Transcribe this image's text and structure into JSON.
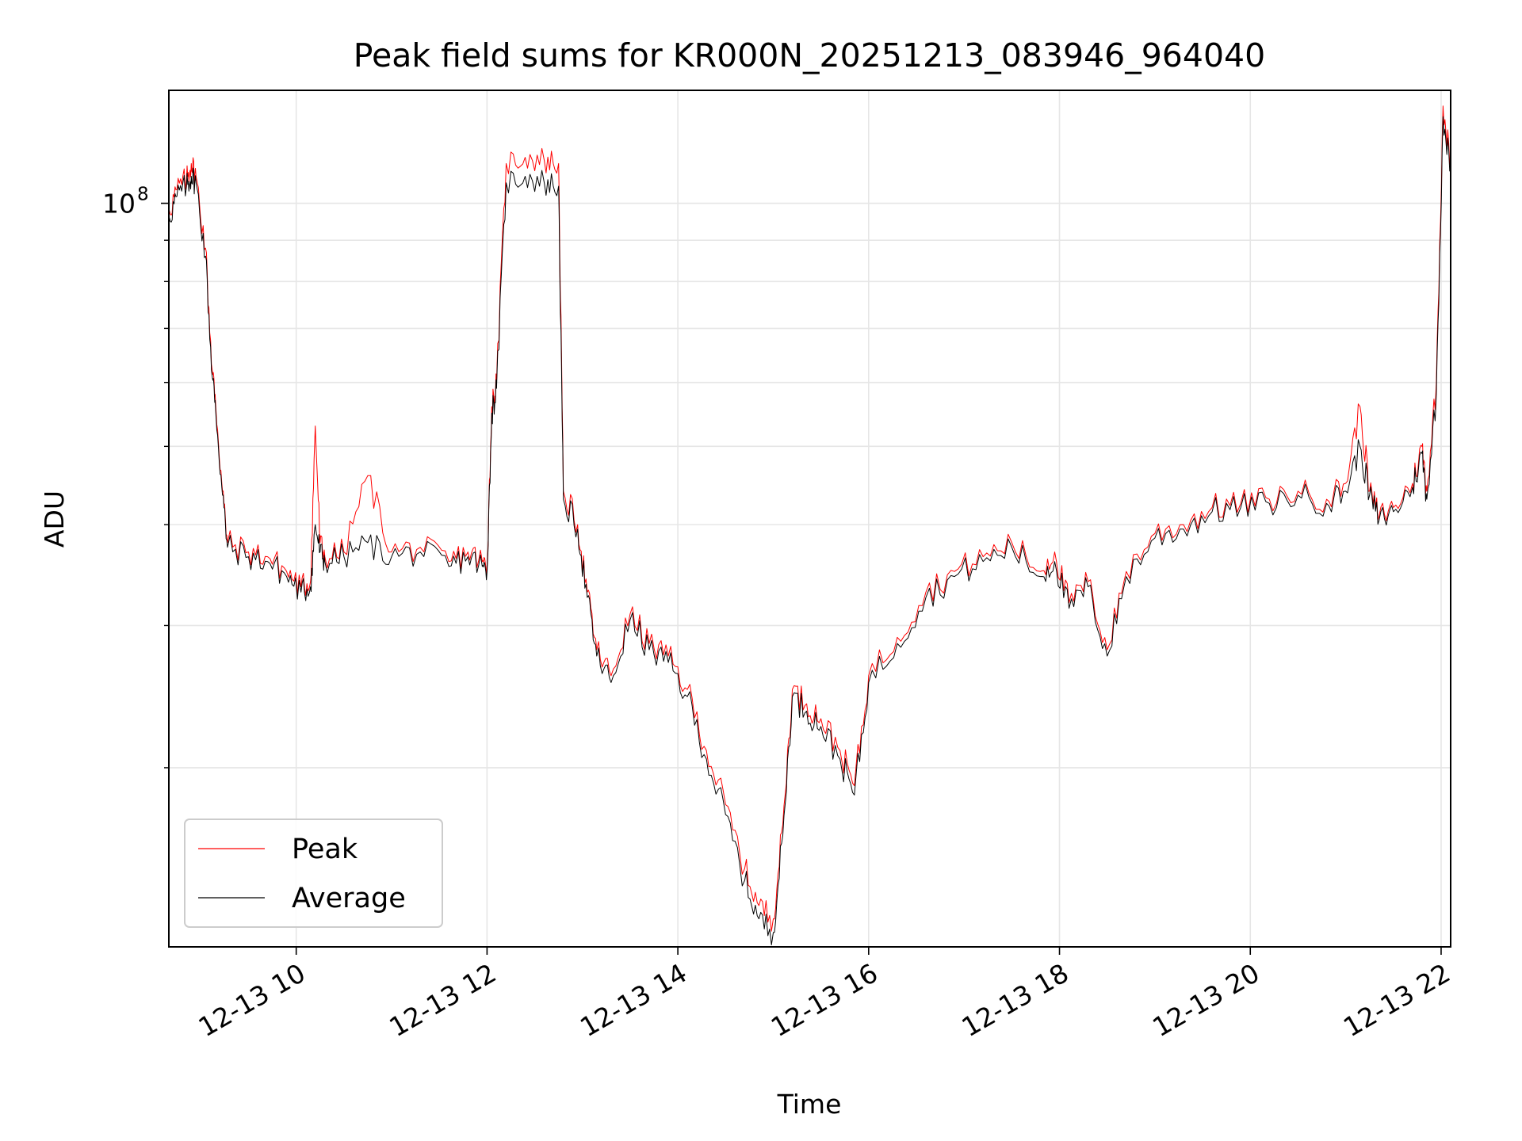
{
  "chart_data": {
    "type": "line",
    "title": "Peak field sums for KR000N_20251213_083946_964040",
    "xlabel": "Time",
    "ylabel": "ADU",
    "x_range_hours": [
      8.665,
      22.1
    ],
    "y_range": [
      12000000,
      138000000
    ],
    "y_scale": "log",
    "grid": true,
    "legend_position": "lower-left",
    "x_ticks": [
      {
        "value": 10,
        "label": "12-13 10"
      },
      {
        "value": 12,
        "label": "12-13 12"
      },
      {
        "value": 14,
        "label": "12-13 14"
      },
      {
        "value": 16,
        "label": "12-13 16"
      },
      {
        "value": 18,
        "label": "12-13 18"
      },
      {
        "value": 20,
        "label": "12-13 20"
      },
      {
        "value": 22,
        "label": "12-13 22"
      }
    ],
    "y_major_tick": {
      "value": 100000000,
      "label_base": "10",
      "label_exp": "8"
    },
    "y_minor_ticks": [
      20000000,
      30000000,
      40000000,
      50000000,
      60000000,
      70000000,
      80000000,
      90000000
    ],
    "series": [
      {
        "name": "Peak",
        "color": "#ff0000",
        "width": 1.0,
        "x": [
          8.67,
          8.75,
          8.85,
          8.9,
          8.95,
          9.05,
          9.12,
          9.15,
          9.22,
          9.28,
          9.5,
          9.7,
          9.9,
          10.05,
          10.15,
          10.2,
          10.25,
          10.3,
          10.5,
          10.75,
          11.0,
          11.3,
          11.6,
          11.8,
          11.95,
          12.0,
          12.05,
          12.1,
          12.2,
          12.4,
          12.6,
          12.75,
          12.8,
          12.95,
          13.05,
          13.15,
          13.3,
          13.5,
          13.7,
          13.9,
          14.1,
          14.3,
          14.5,
          14.7,
          14.85,
          15.0,
          15.1,
          15.2,
          15.35,
          15.5,
          15.7,
          15.85,
          16.0,
          16.3,
          16.6,
          16.9,
          17.2,
          17.5,
          17.8,
          17.95,
          18.1,
          18.3,
          18.5,
          18.7,
          19.0,
          19.3,
          19.6,
          19.9,
          20.2,
          20.5,
          20.8,
          21.0,
          21.15,
          21.25,
          21.35,
          21.5,
          21.7,
          21.8,
          21.85,
          21.95,
          22.02,
          22.1
        ],
        "y": [
          98000000,
          104000000,
          107000000,
          112000000,
          108000000,
          88000000,
          62000000,
          58000000,
          45000000,
          38000000,
          37000000,
          36500000,
          35000000,
          33500000,
          34000000,
          53000000,
          38000000,
          36500000,
          37000000,
          46000000,
          37000000,
          37500000,
          36000000,
          37000000,
          36000000,
          35500000,
          56000000,
          60000000,
          112000000,
          114000000,
          113000000,
          112000000,
          44000000,
          40000000,
          33000000,
          28000000,
          26000000,
          31000000,
          28500000,
          27500000,
          25000000,
          21000000,
          18000000,
          15000000,
          13500000,
          13000000,
          17000000,
          25000000,
          24000000,
          23000000,
          21000000,
          19000000,
          26000000,
          29000000,
          33000000,
          35000000,
          36500000,
          38000000,
          35000000,
          37000000,
          32000000,
          34000000,
          28000000,
          35000000,
          39000000,
          40000000,
          42000000,
          42500000,
          43000000,
          44000000,
          43000000,
          45000000,
          56000000,
          44000000,
          41000000,
          42000000,
          45000000,
          50000000,
          44000000,
          60000000,
          132000000,
          112000000
        ]
      },
      {
        "name": "Average",
        "color": "#000000",
        "width": 1.0,
        "x": [
          8.67,
          8.75,
          8.85,
          8.9,
          8.95,
          9.05,
          9.12,
          9.15,
          9.22,
          9.28,
          9.5,
          9.7,
          9.9,
          10.05,
          10.15,
          10.2,
          10.25,
          10.3,
          10.5,
          10.75,
          11.0,
          11.3,
          11.6,
          11.8,
          11.95,
          12.0,
          12.05,
          12.1,
          12.2,
          12.4,
          12.6,
          12.75,
          12.8,
          12.95,
          13.05,
          13.15,
          13.3,
          13.5,
          13.7,
          13.9,
          14.1,
          14.3,
          14.5,
          14.7,
          14.85,
          15.0,
          15.1,
          15.2,
          15.35,
          15.5,
          15.7,
          15.85,
          16.0,
          16.3,
          16.6,
          16.9,
          17.2,
          17.5,
          17.8,
          17.95,
          18.1,
          18.3,
          18.5,
          18.7,
          19.0,
          19.3,
          19.6,
          19.9,
          20.2,
          20.5,
          20.8,
          21.0,
          21.15,
          21.25,
          21.35,
          21.5,
          21.7,
          21.8,
          21.85,
          21.95,
          22.02,
          22.1
        ],
        "y": [
          96000000,
          102000000,
          105000000,
          108000000,
          106000000,
          86000000,
          61000000,
          57000000,
          44500000,
          37500000,
          36500000,
          36000000,
          34500000,
          33000000,
          33500000,
          40000000,
          37000000,
          36000000,
          36500000,
          38000000,
          36500000,
          37000000,
          35500000,
          36500000,
          35500000,
          35000000,
          55000000,
          59000000,
          106000000,
          108000000,
          106000000,
          105000000,
          43000000,
          39500000,
          32500000,
          27500000,
          25500000,
          30500000,
          28000000,
          27000000,
          24500000,
          20500000,
          17500000,
          14500000,
          13000000,
          12500000,
          16500000,
          24500000,
          23500000,
          22500000,
          20500000,
          18500000,
          25500000,
          28500000,
          32500000,
          34500000,
          36000000,
          37500000,
          34500000,
          36000000,
          31500000,
          33500000,
          27500000,
          34500000,
          38500000,
          39500000,
          41500000,
          42000000,
          42500000,
          43500000,
          42500000,
          44000000,
          50000000,
          43500000,
          40500000,
          41500000,
          44500000,
          49000000,
          43000000,
          58000000,
          128000000,
          110000000
        ]
      }
    ]
  }
}
